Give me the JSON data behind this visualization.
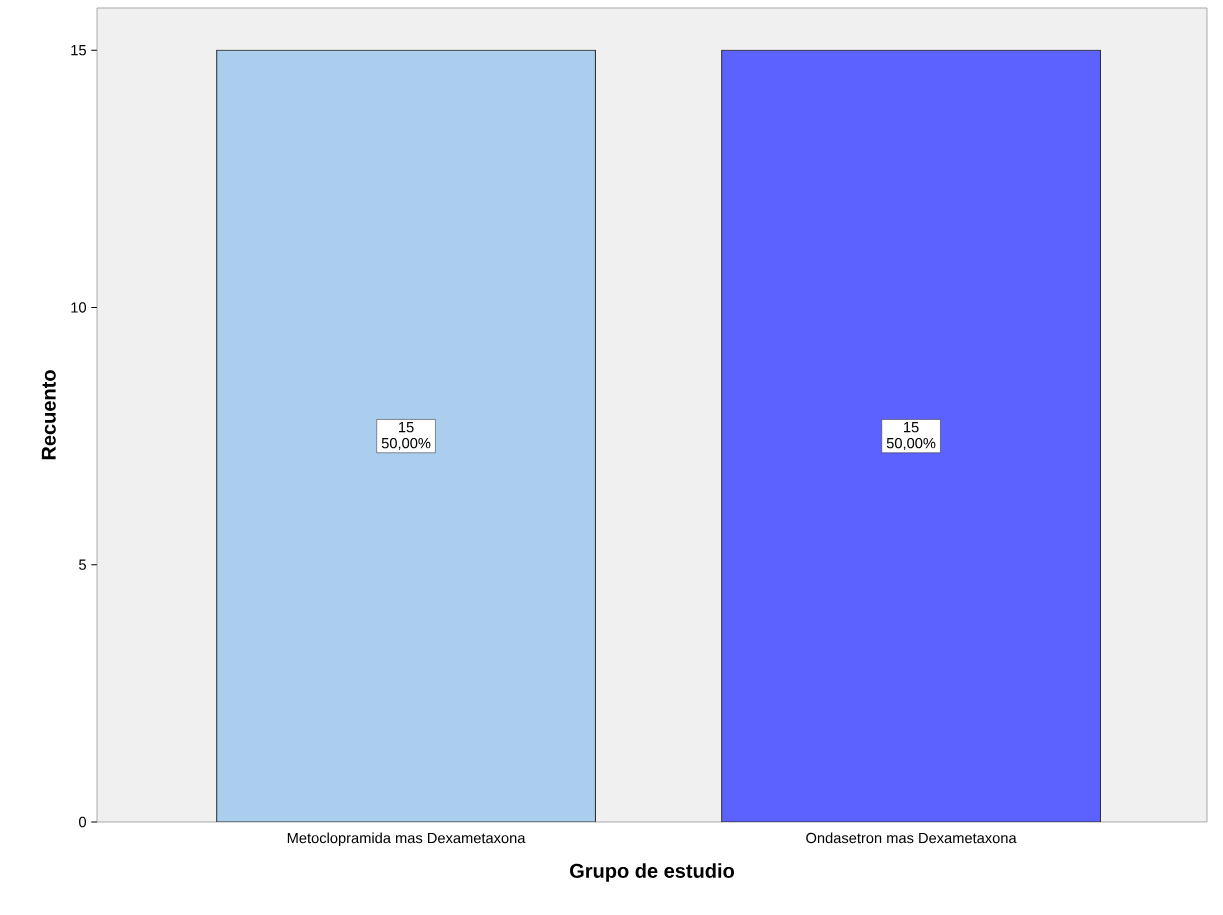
{
  "chart_data": {
    "type": "bar",
    "xlabel": "Grupo de estudio",
    "ylabel": "Recuento",
    "categories": [
      "Metoclopramida mas Dexametaxona",
      "Ondasetron mas Dexametaxona"
    ],
    "values": [
      15,
      15
    ],
    "colors": [
      "#abcdee",
      "#5c62ff"
    ],
    "value_labels": [
      "15 50,00%",
      "15 50,00%"
    ],
    "ylim": [
      0,
      15.82
    ],
    "yticks": [
      0,
      5,
      10,
      15
    ]
  }
}
